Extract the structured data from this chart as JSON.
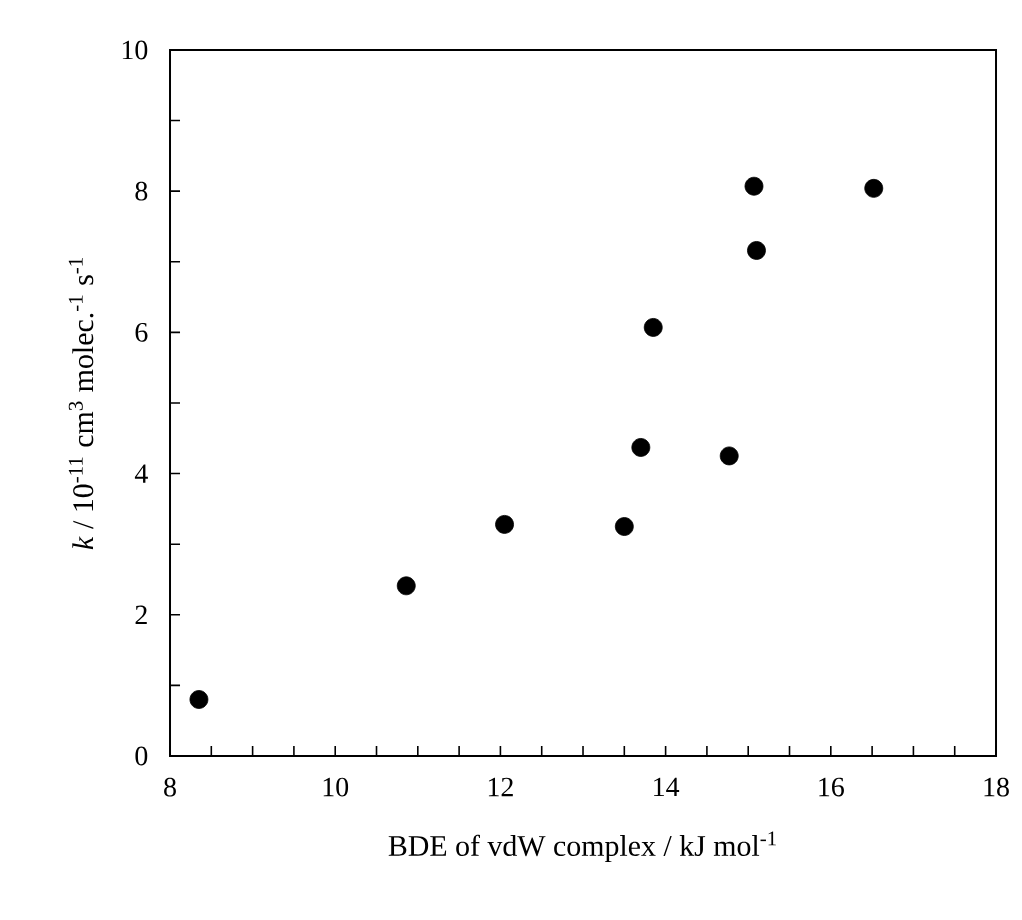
{
  "chart_data": {
    "type": "scatter",
    "xlabel": "BDE of vdW complex / kJ  mol$^{-1}$",
    "ylabel": "*k* / 10$^{-11}$ cm$^{3}$ molec.$^{-1}$ s$^{-1}$",
    "x": [
      8.35,
      10.86,
      12.05,
      13.5,
      13.7,
      13.85,
      14.77,
      15.07,
      15.1,
      16.52
    ],
    "values": [
      0.8,
      2.41,
      3.28,
      3.25,
      4.37,
      6.07,
      4.25,
      8.07,
      7.16,
      8.04
    ],
    "color": "#000000",
    "grid": false,
    "xlim": [
      8,
      18
    ],
    "xticks": [
      8,
      {
        "value": 8.5,
        "label": null
      },
      {
        "value": 9,
        "label": null
      },
      {
        "value": 9.5,
        "label": null
      },
      10,
      {
        "value": 10.5,
        "label": null
      },
      {
        "value": 11,
        "label": null
      },
      {
        "value": 11.5,
        "label": null
      },
      12,
      {
        "value": 12.5,
        "label": null
      },
      {
        "value": 13,
        "label": null
      },
      {
        "value": 13.5,
        "label": null
      },
      14,
      {
        "value": 14.5,
        "label": null
      },
      {
        "value": 15,
        "label": null
      },
      {
        "value": 15.5,
        "label": null
      },
      16,
      {
        "value": 16.5,
        "label": null
      },
      {
        "value": 17,
        "label": null
      },
      {
        "value": 17.5,
        "label": null
      },
      18
    ],
    "ylim": [
      0,
      10
    ],
    "yticks": [
      0,
      {
        "value": 1,
        "label": null
      },
      2,
      {
        "value": 3,
        "label": null
      },
      4,
      {
        "value": 5,
        "label": null
      },
      6,
      {
        "value": 7,
        "label": null
      },
      8,
      {
        "value": 9,
        "label": null
      },
      10
    ]
  }
}
